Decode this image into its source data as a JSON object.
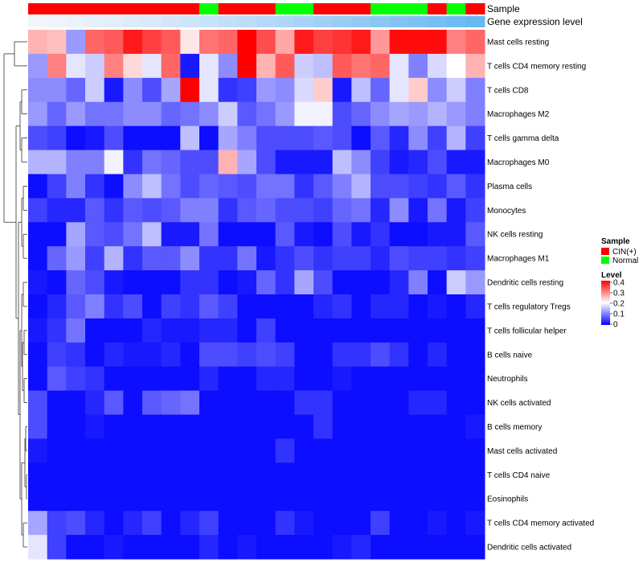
{
  "chart_data": {
    "type": "heatmap",
    "title": "",
    "annotation_tracks": [
      {
        "name": "Sample",
        "colors": [
          "#FF0000",
          "#FF0000",
          "#FF0000",
          "#FF0000",
          "#FF0000",
          "#FF0000",
          "#FF0000",
          "#FF0000",
          "#FF0000",
          "#00FF00",
          "#FF0000",
          "#FF0000",
          "#FF0000",
          "#00FF00",
          "#00FF00",
          "#FF0000",
          "#FF0000",
          "#FF0000",
          "#00FF00",
          "#00FF00",
          "#00FF00",
          "#FF0000",
          "#00FF00",
          "#FF0000"
        ]
      },
      {
        "name": "Gene expression level",
        "colors": [
          "#F2F6FA",
          "#EEF4FA",
          "#EAF2FA",
          "#E6F0FA",
          "#E2EEFA",
          "#DDEBF9",
          "#D8E9F9",
          "#D3E6F9",
          "#CEE4F9",
          "#C8E2F9",
          "#C2DFF8",
          "#BCDCF8",
          "#B5D9F8",
          "#AED6F7",
          "#A7D3F7",
          "#A0D0F6",
          "#99CDF6",
          "#92CAF5",
          "#8BC7F5",
          "#84C4F4",
          "#7DC1F4",
          "#76BEF3",
          "#6FBBF3",
          "#68B8F2"
        ]
      }
    ],
    "rows": [
      "Mast cells resting",
      "T cells CD4 memory resting",
      "T cells CD8",
      "Macrophages M2",
      "T cells gamma delta",
      "Macrophages M0",
      "Plasma cells",
      "Monocytes",
      "NK cells resting",
      "Macrophages M1",
      "Dendritic cells resting",
      "T cells regulatory  Tregs",
      "T cells follicular helper",
      "B cells naive",
      "Neutrophils",
      "NK cells activated",
      "B cells memory",
      "Mast cells activated",
      "T cells CD4 naive",
      "Eosinophils",
      "T cells CD4 memory activated",
      "Dendritic cells activated"
    ],
    "n_columns": 24,
    "values": [
      [
        0.26,
        0.25,
        0.12,
        0.32,
        0.33,
        0.38,
        0.35,
        0.33,
        0.22,
        0.31,
        0.32,
        0.4,
        0.34,
        0.27,
        0.38,
        0.35,
        0.36,
        0.38,
        0.28,
        0.39,
        0.39,
        0.39,
        0.3,
        0.32
      ],
      [
        0.12,
        0.3,
        0.18,
        0.16,
        0.3,
        0.23,
        0.18,
        0.32,
        0.02,
        0.18,
        0.11,
        0.4,
        0.26,
        0.33,
        0.16,
        0.15,
        0.33,
        0.31,
        0.32,
        0.18,
        0.1,
        0.17,
        0.2,
        0.26
      ],
      [
        0.11,
        0.11,
        0.08,
        0.16,
        0.02,
        0.11,
        0.06,
        0.13,
        0.4,
        0.18,
        0.04,
        0.05,
        0.12,
        0.11,
        0.17,
        0.24,
        0.02,
        0.15,
        0.08,
        0.18,
        0.24,
        0.11,
        0.16,
        0.1
      ],
      [
        0.12,
        0.08,
        0.12,
        0.09,
        0.09,
        0.11,
        0.11,
        0.08,
        0.09,
        0.11,
        0.16,
        0.07,
        0.09,
        0.12,
        0.19,
        0.19,
        0.06,
        0.08,
        0.11,
        0.13,
        0.12,
        0.14,
        0.12,
        0.1
      ],
      [
        0.06,
        0.05,
        0.01,
        0.02,
        0.06,
        0.01,
        0.01,
        0.01,
        0.15,
        0.01,
        0.13,
        0.1,
        0.06,
        0.06,
        0.06,
        0.07,
        0.06,
        0.01,
        0.07,
        0.03,
        0.11,
        0.05,
        0.14,
        0.05
      ],
      [
        0.14,
        0.14,
        0.1,
        0.1,
        0.19,
        0.04,
        0.09,
        0.08,
        0.06,
        0.06,
        0.26,
        0.13,
        0.06,
        0.02,
        0.02,
        0.02,
        0.15,
        0.11,
        0.05,
        0.02,
        0.03,
        0.06,
        0.02,
        0.02
      ],
      [
        0.01,
        0.05,
        0.1,
        0.04,
        0.01,
        0.11,
        0.15,
        0.09,
        0.06,
        0.08,
        0.07,
        0.06,
        0.09,
        0.09,
        0.04,
        0.07,
        0.1,
        0.14,
        0.06,
        0.06,
        0.05,
        0.04,
        0.07,
        0.04
      ],
      [
        0.05,
        0.03,
        0.03,
        0.07,
        0.04,
        0.07,
        0.06,
        0.07,
        0.1,
        0.1,
        0.04,
        0.07,
        0.08,
        0.06,
        0.06,
        0.05,
        0.08,
        0.09,
        0.03,
        0.11,
        0.02,
        0.09,
        0.02,
        0.05
      ],
      [
        0.01,
        0.01,
        0.13,
        0.07,
        0.06,
        0.09,
        0.15,
        0.02,
        0.02,
        0.09,
        0.01,
        0.01,
        0.01,
        0.07,
        0.02,
        0.01,
        0.06,
        0.02,
        0.04,
        0.01,
        0.01,
        0.02,
        0.02,
        0.07
      ],
      [
        0.01,
        0.08,
        0.12,
        0.05,
        0.14,
        0.04,
        0.07,
        0.07,
        0.11,
        0.04,
        0.04,
        0.09,
        0.02,
        0.04,
        0.06,
        0.04,
        0.05,
        0.05,
        0.03,
        0.06,
        0.05,
        0.05,
        0.04,
        0.05
      ],
      [
        0.02,
        0.01,
        0.08,
        0.06,
        0.02,
        0.01,
        0.01,
        0.01,
        0.04,
        0.04,
        0.01,
        0.02,
        0.08,
        0.04,
        0.13,
        0.06,
        0.01,
        0.01,
        0.01,
        0.03,
        0.1,
        0.01,
        0.16,
        0.12
      ],
      [
        0.01,
        0.03,
        0.07,
        0.1,
        0.04,
        0.06,
        0.01,
        0.05,
        0.04,
        0.07,
        0.05,
        0.01,
        0.01,
        0.01,
        0.01,
        0.03,
        0.04,
        0.01,
        0.03,
        0.03,
        0.01,
        0.02,
        0.01,
        0.03
      ],
      [
        0.02,
        0.04,
        0.09,
        0.01,
        0.01,
        0.01,
        0.03,
        0.02,
        0.02,
        0.03,
        0.03,
        0.01,
        0.05,
        0.01,
        0.01,
        0.01,
        0.01,
        0.01,
        0.01,
        0.01,
        0.01,
        0.01,
        0.01,
        0.01
      ],
      [
        0.01,
        0.05,
        0.04,
        0.01,
        0.03,
        0.02,
        0.02,
        0.03,
        0.01,
        0.06,
        0.06,
        0.05,
        0.06,
        0.05,
        0.01,
        0.01,
        0.04,
        0.04,
        0.06,
        0.04,
        0.01,
        0.03,
        0.01,
        0.01
      ],
      [
        0.01,
        0.07,
        0.05,
        0.04,
        0.01,
        0.01,
        0.01,
        0.01,
        0.01,
        0.03,
        0.01,
        0.01,
        0.03,
        0.03,
        0.01,
        0.01,
        0.02,
        0.01,
        0.01,
        0.01,
        0.01,
        0.01,
        0.01,
        0.01
      ],
      [
        0.06,
        0.01,
        0.01,
        0.03,
        0.07,
        0.01,
        0.07,
        0.08,
        0.09,
        0.01,
        0.01,
        0.01,
        0.01,
        0.01,
        0.04,
        0.04,
        0.01,
        0.01,
        0.01,
        0.01,
        0.03,
        0.03,
        0.01,
        0.01
      ],
      [
        0.06,
        0.01,
        0.01,
        0.02,
        0.01,
        0.01,
        0.01,
        0.01,
        0.01,
        0.01,
        0.01,
        0.01,
        0.01,
        0.01,
        0.01,
        0.04,
        0.01,
        0.01,
        0.01,
        0.01,
        0.01,
        0.01,
        0.01,
        0.02
      ],
      [
        0.02,
        0.01,
        0.01,
        0.01,
        0.01,
        0.01,
        0.01,
        0.01,
        0.01,
        0.01,
        0.01,
        0.01,
        0.01,
        0.04,
        0.01,
        0.01,
        0.01,
        0.01,
        0.01,
        0.01,
        0.01,
        0.01,
        0.01,
        0.01
      ],
      [
        0.01,
        0.01,
        0.01,
        0.01,
        0.01,
        0.01,
        0.01,
        0.01,
        0.01,
        0.01,
        0.01,
        0.01,
        0.01,
        0.01,
        0.01,
        0.01,
        0.01,
        0.01,
        0.01,
        0.01,
        0.01,
        0.01,
        0.01,
        0.01
      ],
      [
        0.01,
        0.01,
        0.01,
        0.01,
        0.01,
        0.01,
        0.01,
        0.01,
        0.01,
        0.01,
        0.01,
        0.01,
        0.01,
        0.01,
        0.01,
        0.01,
        0.01,
        0.01,
        0.01,
        0.01,
        0.01,
        0.01,
        0.01,
        0.01
      ],
      [
        0.13,
        0.05,
        0.06,
        0.03,
        0.01,
        0.03,
        0.05,
        0.01,
        0.03,
        0.05,
        0.01,
        0.01,
        0.01,
        0.04,
        0.02,
        0.01,
        0.01,
        0.01,
        0.05,
        0.01,
        0.01,
        0.02,
        0.01,
        0.02
      ],
      [
        0.18,
        0.05,
        0.01,
        0.01,
        0.02,
        0.01,
        0.01,
        0.01,
        0.01,
        0.03,
        0.01,
        0.02,
        0.01,
        0.01,
        0.01,
        0.01,
        0.02,
        0.03,
        0.01,
        0.01,
        0.01,
        0.01,
        0.01,
        0.01
      ]
    ],
    "color_scale": {
      "min": 0,
      "max": 0.4,
      "stops": [
        {
          "value": 0,
          "color": "#0000FF"
        },
        {
          "value": 0.2,
          "color": "#FFFFFF"
        },
        {
          "value": 0.4,
          "color": "#FF0000"
        }
      ]
    },
    "legend": {
      "sample_title": "Sample",
      "sample_entries": [
        {
          "label": "CIN(+)",
          "color": "#FF0000"
        },
        {
          "label": "Normal",
          "color": "#00FF00"
        }
      ],
      "level_title": "Level",
      "level_ticks": [
        "0.4",
        "0.3",
        "0.2",
        "0.1",
        "0"
      ],
      "placement": "right"
    },
    "row_dendrogram": true
  }
}
